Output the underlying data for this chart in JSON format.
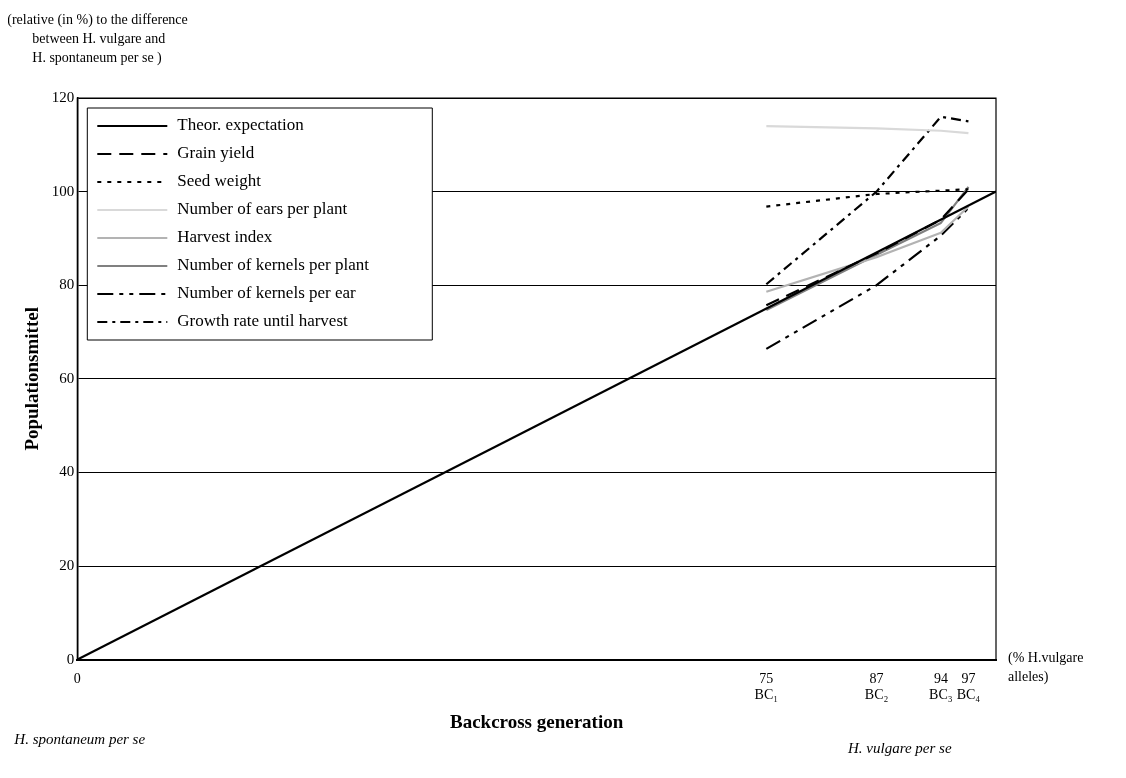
{
  "chart_data": {
    "type": "line",
    "xlabel": "Backcross generation",
    "ylabel": "Populationsmittel",
    "annotations": [
      "(relative (in %) to the difference",
      "between H. vulgare and",
      "H. spontaneum per se )",
      "(% H.vulgare",
      "alleles)",
      "H. spontaneum per se",
      "H. vulgare per se"
    ],
    "xlim": [
      0,
      100
    ],
    "xticks": [
      0,
      {
        "value": 75,
        "label": "75\nBC₁"
      },
      {
        "value": 87,
        "label": "87\nBC₂"
      },
      {
        "value": 94,
        "label": "94\nBC₃"
      },
      {
        "value": 97,
        "label": "97\nBC₄"
      }
    ],
    "ylim": [
      0,
      120
    ],
    "yticks": [
      0,
      20,
      40,
      60,
      80,
      100,
      120
    ],
    "grid": "y",
    "legend": "top left",
    "marker": "none",
    "series": [
      {
        "name": "Theor. expectation",
        "color": "#000000",
        "line_style": "solid",
        "x": [
          0,
          100
        ],
        "values": [
          0,
          100
        ]
      },
      {
        "name": "Grain yield",
        "color": "#000000",
        "line_style": "dashed",
        "x": [
          75,
          87,
          94,
          97
        ],
        "values": [
          75.7,
          86.8,
          94,
          100.5
        ]
      },
      {
        "name": "Seed weight",
        "color": "#000000",
        "line_style": "dotted",
        "x": [
          75,
          87,
          94,
          97
        ],
        "values": [
          96.8,
          99.5,
          100.2,
          100.5
        ]
      },
      {
        "name": "Number of ears per plant",
        "color": "#d9d9d9",
        "line_style": "solid",
        "x": [
          75,
          87,
          94,
          97
        ],
        "values": [
          114,
          113.5,
          113,
          112.5
        ]
      },
      {
        "name": "Harvest index",
        "color": "#b3b3b3",
        "line_style": "solid",
        "x": [
          75,
          87,
          94,
          97
        ],
        "values": [
          78.6,
          86,
          91.2,
          96.8
        ]
      },
      {
        "name": "Number of kernels per plant",
        "color": "#808080",
        "line_style": "solid",
        "x": [
          75,
          87,
          94,
          97
        ],
        "values": [
          74.7,
          86.5,
          93.3,
          101
        ]
      },
      {
        "name": "Number of kernels per ear",
        "color": "#000000",
        "line_style": "dashdotdot",
        "x": [
          75,
          87,
          94,
          97
        ],
        "values": [
          66.4,
          80,
          90.6,
          96.5
        ]
      },
      {
        "name": "Growth rate until harvest",
        "color": "#000000",
        "line_style": "dashdot",
        "x": [
          75,
          87,
          94,
          97
        ],
        "values": [
          80.2,
          100,
          116,
          115
        ]
      }
    ]
  }
}
